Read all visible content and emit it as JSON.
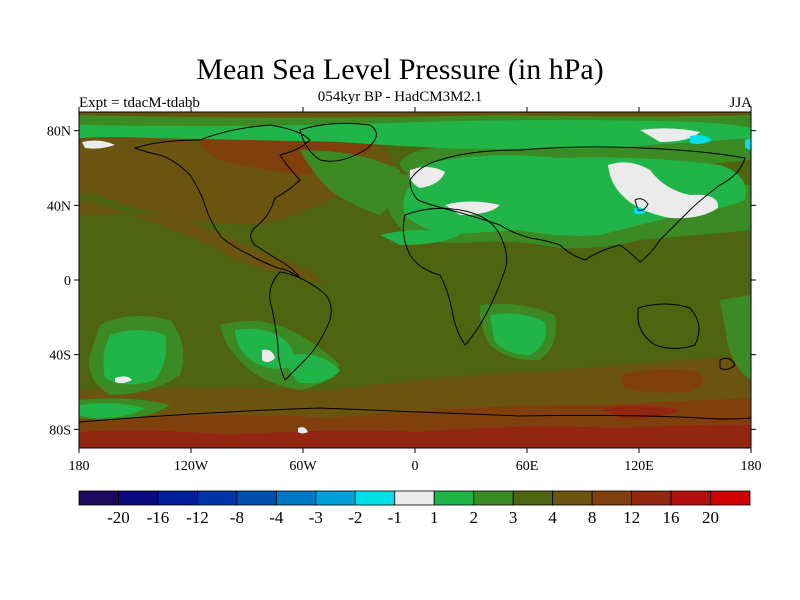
{
  "header": {
    "title": "Mean Sea Level Pressure (in hPa)",
    "subtitle": "054kyr BP - HadCM3M2.1",
    "experiment": "Expt = tdacM-tdabb",
    "season": "JJA"
  },
  "map": {
    "lon_range": [
      -180,
      180
    ],
    "lat_range": [
      -90,
      90
    ],
    "lat_ticks": [
      {
        "value": 80,
        "label": "80N"
      },
      {
        "value": 40,
        "label": "40N"
      },
      {
        "value": 0,
        "label": "0"
      },
      {
        "value": -40,
        "label": "40S"
      },
      {
        "value": -80,
        "label": "80S"
      }
    ],
    "lon_ticks": [
      {
        "value": -180,
        "label": "180"
      },
      {
        "value": -120,
        "label": "120W"
      },
      {
        "value": -60,
        "label": "60W"
      },
      {
        "value": 0,
        "label": "0"
      },
      {
        "value": 60,
        "label": "60E"
      },
      {
        "value": 120,
        "label": "120E"
      },
      {
        "value": 180,
        "label": "180"
      }
    ]
  },
  "colorbar": {
    "colors": [
      "#1b0a5a",
      "#0a0a80",
      "#00209e",
      "#0035a8",
      "#0050b0",
      "#0078c8",
      "#00a0d8",
      "#00e0e8",
      "#ebebeb",
      "#20b449",
      "#3c8a23",
      "#4e6410",
      "#6b5410",
      "#80400e",
      "#922610",
      "#b41010",
      "#d00000"
    ],
    "labels": [
      "-20",
      "-16",
      "-12",
      "-8",
      "-4",
      "-3",
      "-2",
      "-1",
      "1",
      "2",
      "3",
      "4",
      "8",
      "12",
      "16",
      "20"
    ]
  }
}
